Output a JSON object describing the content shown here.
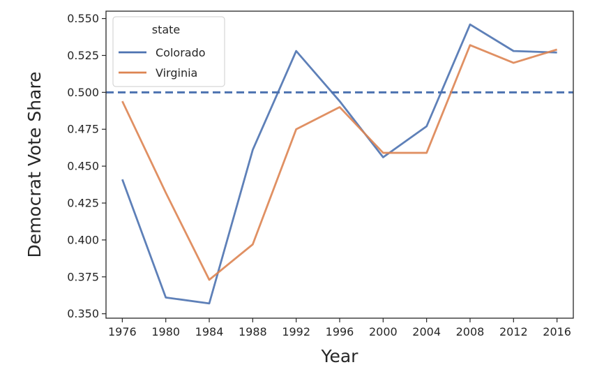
{
  "chart_data": {
    "type": "line",
    "xlabel": "Year",
    "ylabel": "Democrat Vote Share",
    "x": [
      1976,
      1980,
      1984,
      1988,
      1992,
      1996,
      2000,
      2004,
      2008,
      2012,
      2016
    ],
    "xlim": [
      1974.5,
      1017.5
    ],
    "ylim": [
      0.347,
      0.555
    ],
    "yticks": [
      0.35,
      0.375,
      0.4,
      0.425,
      0.45,
      0.475,
      0.5,
      0.525,
      0.55
    ],
    "ytick_labels": [
      "0.350",
      "0.375",
      "0.400",
      "0.425",
      "0.450",
      "0.475",
      "0.500",
      "0.525",
      "0.550"
    ],
    "xtick_labels": [
      "1976",
      "1980",
      "1984",
      "1988",
      "1992",
      "1996",
      "2000",
      "2004",
      "2008",
      "2012",
      "2016"
    ],
    "reference_line": {
      "y": 0.5,
      "style": "dashed",
      "color": "#4c72b0"
    },
    "legend": {
      "title": "state",
      "placement": "top-left"
    },
    "series": [
      {
        "name": "Colorado",
        "color": "#4c72b0",
        "values": [
          0.441,
          0.361,
          0.357,
          0.461,
          0.528,
          0.494,
          0.456,
          0.477,
          0.546,
          0.528,
          0.527
        ]
      },
      {
        "name": "Virginia",
        "color": "#dd8452",
        "values": [
          0.494,
          0.432,
          0.373,
          0.397,
          0.475,
          0.49,
          0.459,
          0.459,
          0.532,
          0.52,
          0.529
        ]
      }
    ]
  }
}
